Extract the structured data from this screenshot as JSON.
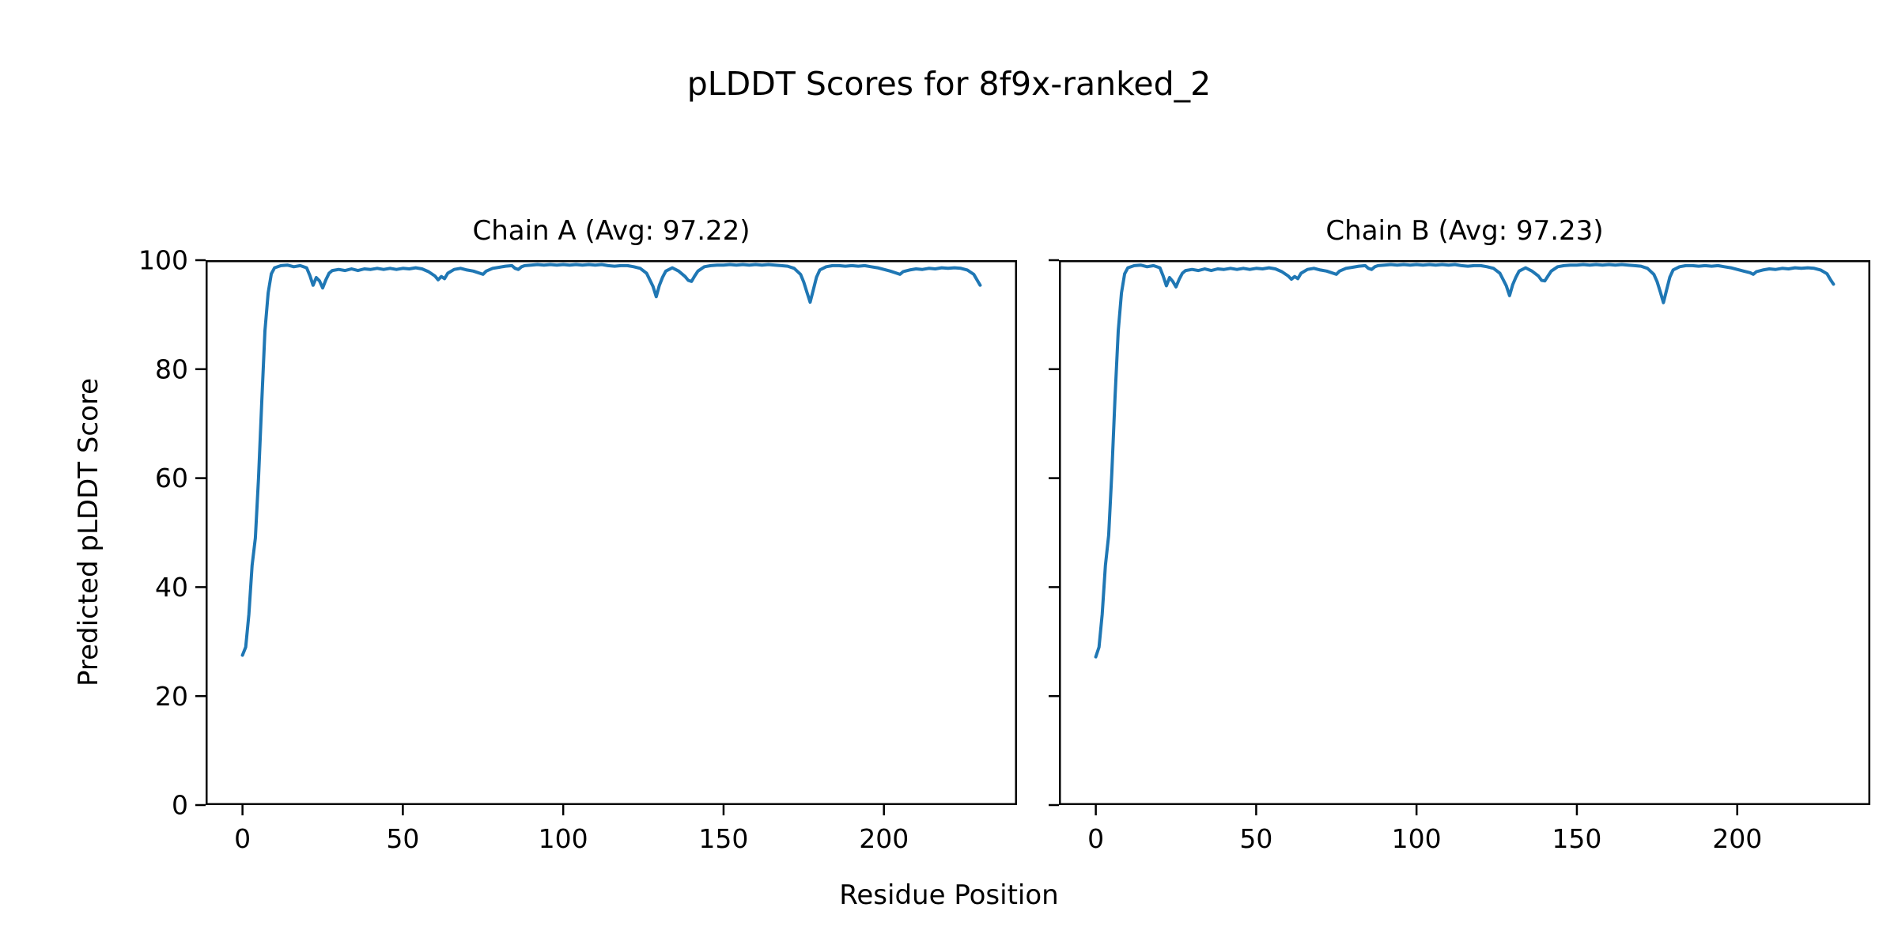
{
  "figure": {
    "title": "pLDDT Scores for 8f9x-ranked_2",
    "xlabel": "Residue Position",
    "ylabel": "Predicted pLDDT Score",
    "background_color": "#ffffff",
    "text_color": "#000000"
  },
  "chart_data": [
    {
      "type": "line",
      "title": "Chain A (Avg: 97.22)",
      "legend": null,
      "line_color": "#1f77b4",
      "grid": false,
      "xlim": [
        -11.5,
        241.5
      ],
      "ylim": [
        0,
        100
      ],
      "xticks": [
        0,
        50,
        100,
        150,
        200
      ],
      "yticks": [
        0,
        20,
        40,
        60,
        80,
        100
      ],
      "show_ytick_labels": true,
      "points": [
        [
          0,
          27.5
        ],
        [
          1,
          29
        ],
        [
          2,
          35
        ],
        [
          3,
          44
        ],
        [
          4,
          49
        ],
        [
          5,
          60
        ],
        [
          6,
          74
        ],
        [
          7,
          87
        ],
        [
          8,
          94
        ],
        [
          9,
          97.5
        ],
        [
          10,
          98.6
        ],
        [
          12,
          99
        ],
        [
          14,
          99.1
        ],
        [
          16,
          98.8
        ],
        [
          18,
          99
        ],
        [
          20,
          98.6
        ],
        [
          21,
          97.2
        ],
        [
          22,
          95.4
        ],
        [
          23,
          96.8
        ],
        [
          24,
          96.2
        ],
        [
          25,
          94.9
        ],
        [
          26,
          96.4
        ],
        [
          27,
          97.6
        ],
        [
          28,
          98.1
        ],
        [
          30,
          98.3
        ],
        [
          32,
          98.1
        ],
        [
          34,
          98.4
        ],
        [
          36,
          98.1
        ],
        [
          38,
          98.4
        ],
        [
          40,
          98.3
        ],
        [
          42,
          98.5
        ],
        [
          44,
          98.3
        ],
        [
          46,
          98.5
        ],
        [
          48,
          98.3
        ],
        [
          50,
          98.5
        ],
        [
          52,
          98.4
        ],
        [
          54,
          98.6
        ],
        [
          56,
          98.4
        ],
        [
          58,
          97.9
        ],
        [
          60,
          97.1
        ],
        [
          61,
          96.4
        ],
        [
          62,
          97
        ],
        [
          63,
          96.6
        ],
        [
          64,
          97.6
        ],
        [
          66,
          98.3
        ],
        [
          68,
          98.5
        ],
        [
          70,
          98.2
        ],
        [
          72,
          98
        ],
        [
          74,
          97.6
        ],
        [
          75,
          97.4
        ],
        [
          76,
          98
        ],
        [
          78,
          98.5
        ],
        [
          80,
          98.7
        ],
        [
          82,
          98.9
        ],
        [
          84,
          99
        ],
        [
          85,
          98.5
        ],
        [
          86,
          98.3
        ],
        [
          87,
          98.8
        ],
        [
          88,
          99
        ],
        [
          90,
          99.1
        ],
        [
          92,
          99.2
        ],
        [
          94,
          99.1
        ],
        [
          96,
          99.2
        ],
        [
          98,
          99.1
        ],
        [
          100,
          99.2
        ],
        [
          102,
          99.1
        ],
        [
          104,
          99.2
        ],
        [
          106,
          99.1
        ],
        [
          108,
          99.2
        ],
        [
          110,
          99.1
        ],
        [
          112,
          99.2
        ],
        [
          114,
          99
        ],
        [
          116,
          98.9
        ],
        [
          118,
          99
        ],
        [
          120,
          99
        ],
        [
          122,
          98.8
        ],
        [
          124,
          98.5
        ],
        [
          126,
          97.6
        ],
        [
          128,
          95.2
        ],
        [
          129,
          93.3
        ],
        [
          130,
          95.4
        ],
        [
          131,
          96.9
        ],
        [
          132,
          98
        ],
        [
          134,
          98.6
        ],
        [
          136,
          98
        ],
        [
          138,
          97
        ],
        [
          139,
          96.3
        ],
        [
          140,
          96.1
        ],
        [
          141,
          97.1
        ],
        [
          142,
          98
        ],
        [
          144,
          98.8
        ],
        [
          146,
          99
        ],
        [
          148,
          99.1
        ],
        [
          150,
          99.1
        ],
        [
          152,
          99.2
        ],
        [
          154,
          99.1
        ],
        [
          156,
          99.2
        ],
        [
          158,
          99.1
        ],
        [
          160,
          99.2
        ],
        [
          162,
          99.1
        ],
        [
          164,
          99.2
        ],
        [
          166,
          99.1
        ],
        [
          168,
          99
        ],
        [
          170,
          98.9
        ],
        [
          172,
          98.5
        ],
        [
          174,
          97.4
        ],
        [
          175,
          96
        ],
        [
          176,
          94.1
        ],
        [
          177,
          92.3
        ],
        [
          178,
          94.6
        ],
        [
          179,
          96.9
        ],
        [
          180,
          98.2
        ],
        [
          182,
          98.8
        ],
        [
          184,
          99
        ],
        [
          186,
          99
        ],
        [
          188,
          98.9
        ],
        [
          190,
          99
        ],
        [
          192,
          98.9
        ],
        [
          194,
          99
        ],
        [
          196,
          98.8
        ],
        [
          198,
          98.6
        ],
        [
          200,
          98.3
        ],
        [
          202,
          98
        ],
        [
          204,
          97.6
        ],
        [
          205,
          97.4
        ],
        [
          206,
          97.9
        ],
        [
          208,
          98.2
        ],
        [
          210,
          98.4
        ],
        [
          212,
          98.3
        ],
        [
          214,
          98.5
        ],
        [
          216,
          98.4
        ],
        [
          218,
          98.6
        ],
        [
          220,
          98.5
        ],
        [
          222,
          98.6
        ],
        [
          224,
          98.5
        ],
        [
          226,
          98.2
        ],
        [
          228,
          97.4
        ],
        [
          229,
          96.4
        ],
        [
          230,
          95.4
        ]
      ]
    },
    {
      "type": "line",
      "title": "Chain B (Avg: 97.23)",
      "legend": null,
      "line_color": "#1f77b4",
      "grid": false,
      "xlim": [
        -11.5,
        241.5
      ],
      "ylim": [
        0,
        100
      ],
      "xticks": [
        0,
        50,
        100,
        150,
        200
      ],
      "yticks": [
        0,
        20,
        40,
        60,
        80,
        100
      ],
      "show_ytick_labels": false,
      "points": [
        [
          0,
          27.2
        ],
        [
          1,
          29
        ],
        [
          2,
          35
        ],
        [
          3,
          44
        ],
        [
          4,
          49.5
        ],
        [
          5,
          61
        ],
        [
          6,
          75
        ],
        [
          7,
          87
        ],
        [
          8,
          94
        ],
        [
          9,
          97.5
        ],
        [
          10,
          98.6
        ],
        [
          12,
          99
        ],
        [
          14,
          99.1
        ],
        [
          16,
          98.8
        ],
        [
          18,
          99
        ],
        [
          20,
          98.6
        ],
        [
          21,
          97.1
        ],
        [
          22,
          95.3
        ],
        [
          23,
          96.8
        ],
        [
          24,
          96.1
        ],
        [
          25,
          95.1
        ],
        [
          26,
          96.5
        ],
        [
          27,
          97.6
        ],
        [
          28,
          98.1
        ],
        [
          30,
          98.3
        ],
        [
          32,
          98.1
        ],
        [
          34,
          98.4
        ],
        [
          36,
          98.1
        ],
        [
          38,
          98.4
        ],
        [
          40,
          98.3
        ],
        [
          42,
          98.5
        ],
        [
          44,
          98.3
        ],
        [
          46,
          98.5
        ],
        [
          48,
          98.3
        ],
        [
          50,
          98.5
        ],
        [
          52,
          98.4
        ],
        [
          54,
          98.6
        ],
        [
          56,
          98.4
        ],
        [
          58,
          97.9
        ],
        [
          60,
          97.1
        ],
        [
          61,
          96.5
        ],
        [
          62,
          97
        ],
        [
          63,
          96.6
        ],
        [
          64,
          97.6
        ],
        [
          66,
          98.3
        ],
        [
          68,
          98.5
        ],
        [
          70,
          98.2
        ],
        [
          72,
          98
        ],
        [
          74,
          97.6
        ],
        [
          75,
          97.4
        ],
        [
          76,
          98
        ],
        [
          78,
          98.5
        ],
        [
          80,
          98.7
        ],
        [
          82,
          98.9
        ],
        [
          84,
          99
        ],
        [
          85,
          98.5
        ],
        [
          86,
          98.3
        ],
        [
          87,
          98.8
        ],
        [
          88,
          99
        ],
        [
          90,
          99.1
        ],
        [
          92,
          99.2
        ],
        [
          94,
          99.1
        ],
        [
          96,
          99.2
        ],
        [
          98,
          99.1
        ],
        [
          100,
          99.2
        ],
        [
          102,
          99.1
        ],
        [
          104,
          99.2
        ],
        [
          106,
          99.1
        ],
        [
          108,
          99.2
        ],
        [
          110,
          99.1
        ],
        [
          112,
          99.2
        ],
        [
          114,
          99
        ],
        [
          116,
          98.9
        ],
        [
          118,
          99
        ],
        [
          120,
          99
        ],
        [
          122,
          98.8
        ],
        [
          124,
          98.5
        ],
        [
          126,
          97.6
        ],
        [
          128,
          95.3
        ],
        [
          129,
          93.5
        ],
        [
          130,
          95.5
        ],
        [
          131,
          96.9
        ],
        [
          132,
          98
        ],
        [
          134,
          98.6
        ],
        [
          136,
          98
        ],
        [
          138,
          97.1
        ],
        [
          139,
          96.3
        ],
        [
          140,
          96.2
        ],
        [
          141,
          97.1
        ],
        [
          142,
          98
        ],
        [
          144,
          98.8
        ],
        [
          146,
          99
        ],
        [
          148,
          99.1
        ],
        [
          150,
          99.1
        ],
        [
          152,
          99.2
        ],
        [
          154,
          99.1
        ],
        [
          156,
          99.2
        ],
        [
          158,
          99.1
        ],
        [
          160,
          99.2
        ],
        [
          162,
          99.1
        ],
        [
          164,
          99.2
        ],
        [
          166,
          99.1
        ],
        [
          168,
          99
        ],
        [
          170,
          98.9
        ],
        [
          172,
          98.5
        ],
        [
          174,
          97.4
        ],
        [
          175,
          96.1
        ],
        [
          176,
          94.2
        ],
        [
          177,
          92.2
        ],
        [
          178,
          94.6
        ],
        [
          179,
          96.9
        ],
        [
          180,
          98.2
        ],
        [
          182,
          98.8
        ],
        [
          184,
          99
        ],
        [
          186,
          99
        ],
        [
          188,
          98.9
        ],
        [
          190,
          99
        ],
        [
          192,
          98.9
        ],
        [
          194,
          99
        ],
        [
          196,
          98.8
        ],
        [
          198,
          98.6
        ],
        [
          200,
          98.3
        ],
        [
          202,
          98
        ],
        [
          204,
          97.7
        ],
        [
          205,
          97.4
        ],
        [
          206,
          97.9
        ],
        [
          208,
          98.2
        ],
        [
          210,
          98.4
        ],
        [
          212,
          98.3
        ],
        [
          214,
          98.5
        ],
        [
          216,
          98.4
        ],
        [
          218,
          98.6
        ],
        [
          220,
          98.5
        ],
        [
          222,
          98.6
        ],
        [
          224,
          98.5
        ],
        [
          226,
          98.2
        ],
        [
          228,
          97.5
        ],
        [
          229,
          96.5
        ],
        [
          230,
          95.6
        ]
      ]
    }
  ]
}
